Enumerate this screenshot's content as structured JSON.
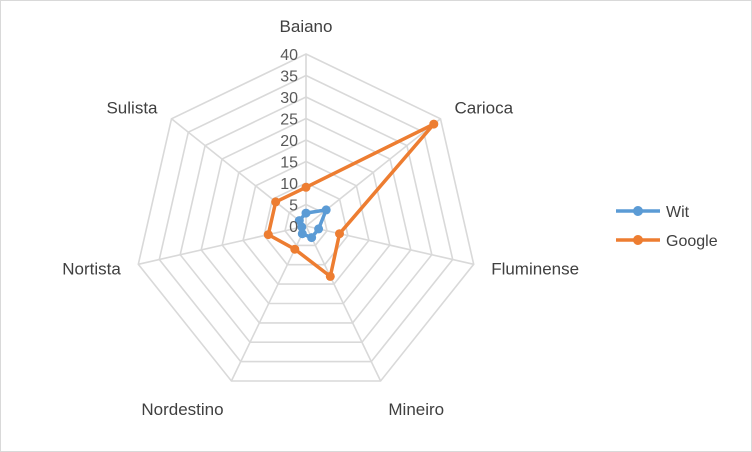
{
  "chart_data": {
    "type": "radar",
    "categories": [
      "Baiano",
      "Carioca",
      "Fluminense",
      "Mineiro",
      "Nordestino",
      "Nortista",
      "Sulista"
    ],
    "rlim": [
      0,
      40
    ],
    "ticks": [
      0,
      5,
      10,
      15,
      20,
      25,
      30,
      35,
      40
    ],
    "tick_labels": [
      "0",
      "5",
      "10",
      "15",
      "20",
      "25",
      "30",
      "35",
      "40"
    ],
    "grid": true,
    "legend_position": "right",
    "series": [
      {
        "name": "Wit",
        "color": "#5b9bd5",
        "values": [
          3,
          6,
          3,
          3,
          2,
          1,
          2
        ]
      },
      {
        "name": "Google",
        "color": "#ed7d31",
        "values": [
          9,
          38,
          8,
          13,
          6,
          9,
          9
        ]
      }
    ]
  }
}
